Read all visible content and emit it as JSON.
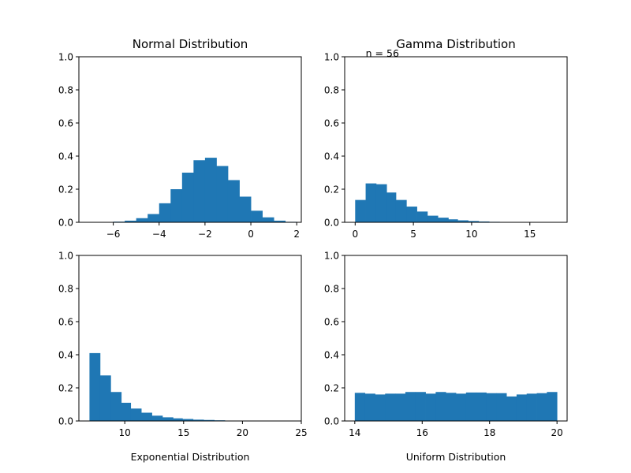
{
  "chart_data": [
    {
      "type": "bar",
      "title": "Normal Distribution",
      "xlabel": "",
      "ylabel": "",
      "xlim": [
        -7.5,
        2.2
      ],
      "ylim": [
        0,
        1
      ],
      "xticks": [
        -6,
        -4,
        -2,
        0,
        2
      ],
      "xtick_labels": [
        "−6",
        "−4",
        "−2",
        "0",
        "2"
      ],
      "yticks": [
        0,
        0.2,
        0.4,
        0.6,
        0.8,
        1.0
      ],
      "ytick_labels": [
        "0.0",
        "0.2",
        "0.4",
        "0.6",
        "0.8",
        "1.0"
      ],
      "bar_color": "#1f77b4",
      "bins": [
        {
          "x0": -6.6,
          "x1": -6.0,
          "value": 0.002
        },
        {
          "x0": -6.0,
          "x1": -5.5,
          "value": 0.004
        },
        {
          "x0": -5.5,
          "x1": -5.0,
          "value": 0.01
        },
        {
          "x0": -5.0,
          "x1": -4.5,
          "value": 0.025
        },
        {
          "x0": -4.5,
          "x1": -4.0,
          "value": 0.05
        },
        {
          "x0": -4.0,
          "x1": -3.5,
          "value": 0.115
        },
        {
          "x0": -3.5,
          "x1": -3.0,
          "value": 0.2
        },
        {
          "x0": -3.0,
          "x1": -2.5,
          "value": 0.3
        },
        {
          "x0": -2.5,
          "x1": -2.0,
          "value": 0.375
        },
        {
          "x0": -2.0,
          "x1": -1.5,
          "value": 0.39
        },
        {
          "x0": -1.5,
          "x1": -1.0,
          "value": 0.34
        },
        {
          "x0": -1.0,
          "x1": -0.5,
          "value": 0.255
        },
        {
          "x0": -0.5,
          "x1": 0.0,
          "value": 0.155
        },
        {
          "x0": 0.0,
          "x1": 0.5,
          "value": 0.07
        },
        {
          "x0": 0.5,
          "x1": 1.0,
          "value": 0.03
        },
        {
          "x0": 1.0,
          "x1": 1.5,
          "value": 0.01
        },
        {
          "x0": 1.5,
          "x1": 2.0,
          "value": 0.003
        }
      ]
    },
    {
      "type": "bar",
      "title": "Gamma Distribution",
      "xlabel": "",
      "ylabel": "",
      "xlim": [
        -0.9,
        18.2
      ],
      "ylim": [
        0,
        1
      ],
      "xticks": [
        0,
        5,
        10,
        15
      ],
      "xtick_labels": [
        "0",
        "5",
        "10",
        "15"
      ],
      "yticks": [
        0,
        0.2,
        0.4,
        0.6,
        0.8,
        1.0
      ],
      "ytick_labels": [
        "0.0",
        "0.2",
        "0.4",
        "0.6",
        "0.8",
        "1.0"
      ],
      "bar_color": "#1f77b4",
      "annotation": "n = 56",
      "annotation_x": 0.5,
      "annotation_y": 1.0,
      "bins": [
        {
          "x0": 0.0,
          "x1": 0.9,
          "value": 0.135
        },
        {
          "x0": 0.9,
          "x1": 1.8,
          "value": 0.235
        },
        {
          "x0": 1.8,
          "x1": 2.7,
          "value": 0.23
        },
        {
          "x0": 2.7,
          "x1": 3.5,
          "value": 0.18
        },
        {
          "x0": 3.5,
          "x1": 4.4,
          "value": 0.135
        },
        {
          "x0": 4.4,
          "x1": 5.3,
          "value": 0.095
        },
        {
          "x0": 5.3,
          "x1": 6.2,
          "value": 0.065
        },
        {
          "x0": 6.2,
          "x1": 7.1,
          "value": 0.04
        },
        {
          "x0": 7.1,
          "x1": 8.0,
          "value": 0.028
        },
        {
          "x0": 8.0,
          "x1": 8.8,
          "value": 0.018
        },
        {
          "x0": 8.8,
          "x1": 9.7,
          "value": 0.012
        },
        {
          "x0": 9.7,
          "x1": 10.6,
          "value": 0.008
        },
        {
          "x0": 10.6,
          "x1": 11.5,
          "value": 0.005
        },
        {
          "x0": 11.5,
          "x1": 12.4,
          "value": 0.003
        },
        {
          "x0": 12.4,
          "x1": 13.2,
          "value": 0.002
        }
      ]
    },
    {
      "type": "bar",
      "title": "",
      "xlabel": "Exponential Distribution",
      "ylabel": "",
      "xlim": [
        6.1,
        25.0
      ],
      "ylim": [
        0,
        1
      ],
      "xticks": [
        10,
        15,
        20,
        25
      ],
      "xtick_labels": [
        "10",
        "15",
        "20",
        "25"
      ],
      "yticks": [
        0,
        0.2,
        0.4,
        0.6,
        0.8,
        1.0
      ],
      "ytick_labels": [
        "0.0",
        "0.2",
        "0.4",
        "0.6",
        "0.8",
        "1.0"
      ],
      "bar_color": "#1f77b4",
      "bins": [
        {
          "x0": 7.0,
          "x1": 7.9,
          "value": 0.41
        },
        {
          "x0": 7.9,
          "x1": 8.8,
          "value": 0.275
        },
        {
          "x0": 8.8,
          "x1": 9.7,
          "value": 0.175
        },
        {
          "x0": 9.7,
          "x1": 10.5,
          "value": 0.11
        },
        {
          "x0": 10.5,
          "x1": 11.4,
          "value": 0.075
        },
        {
          "x0": 11.4,
          "x1": 12.3,
          "value": 0.05
        },
        {
          "x0": 12.3,
          "x1": 13.2,
          "value": 0.032
        },
        {
          "x0": 13.2,
          "x1": 14.1,
          "value": 0.022
        },
        {
          "x0": 14.1,
          "x1": 14.9,
          "value": 0.016
        },
        {
          "x0": 14.9,
          "x1": 15.8,
          "value": 0.012
        },
        {
          "x0": 15.8,
          "x1": 16.7,
          "value": 0.008
        },
        {
          "x0": 16.7,
          "x1": 17.6,
          "value": 0.006
        },
        {
          "x0": 17.6,
          "x1": 18.5,
          "value": 0.004
        }
      ]
    },
    {
      "type": "bar",
      "title": "",
      "xlabel": "Uniform Distribution",
      "ylabel": "",
      "xlim": [
        13.7,
        20.3
      ],
      "ylim": [
        0,
        1
      ],
      "xticks": [
        14,
        16,
        18,
        20
      ],
      "xtick_labels": [
        "14",
        "16",
        "18",
        "20"
      ],
      "yticks": [
        0,
        0.2,
        0.4,
        0.6,
        0.8,
        1.0
      ],
      "ytick_labels": [
        "0.0",
        "0.2",
        "0.4",
        "0.6",
        "0.8",
        "1.0"
      ],
      "bar_color": "#1f77b4",
      "bins": [
        {
          "x0": 14.0,
          "x1": 14.3,
          "value": 0.17
        },
        {
          "x0": 14.3,
          "x1": 14.6,
          "value": 0.165
        },
        {
          "x0": 14.6,
          "x1": 14.9,
          "value": 0.16
        },
        {
          "x0": 14.9,
          "x1": 15.2,
          "value": 0.165
        },
        {
          "x0": 15.2,
          "x1": 15.5,
          "value": 0.165
        },
        {
          "x0": 15.5,
          "x1": 15.8,
          "value": 0.175
        },
        {
          "x0": 15.8,
          "x1": 16.1,
          "value": 0.175
        },
        {
          "x0": 16.1,
          "x1": 16.4,
          "value": 0.165
        },
        {
          "x0": 16.4,
          "x1": 16.7,
          "value": 0.175
        },
        {
          "x0": 16.7,
          "x1": 17.0,
          "value": 0.17
        },
        {
          "x0": 17.0,
          "x1": 17.3,
          "value": 0.165
        },
        {
          "x0": 17.3,
          "x1": 17.6,
          "value": 0.172
        },
        {
          "x0": 17.6,
          "x1": 17.9,
          "value": 0.172
        },
        {
          "x0": 17.9,
          "x1": 18.2,
          "value": 0.168
        },
        {
          "x0": 18.2,
          "x1": 18.5,
          "value": 0.168
        },
        {
          "x0": 18.5,
          "x1": 18.8,
          "value": 0.148
        },
        {
          "x0": 18.8,
          "x1": 19.1,
          "value": 0.16
        },
        {
          "x0": 19.1,
          "x1": 19.4,
          "value": 0.165
        },
        {
          "x0": 19.4,
          "x1": 19.7,
          "value": 0.168
        },
        {
          "x0": 19.7,
          "x1": 20.0,
          "value": 0.175
        }
      ]
    }
  ]
}
